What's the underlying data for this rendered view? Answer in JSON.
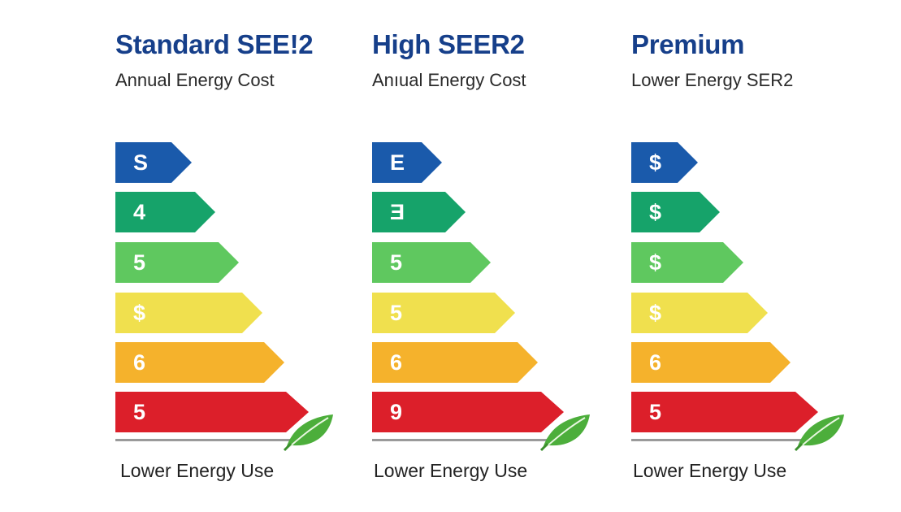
{
  "colors": {
    "title": "#163f8a",
    "bar_colors": [
      "#1a5aab",
      "#16a36a",
      "#5fc85f",
      "#f0e04e",
      "#f5b22c",
      "#dc1f2a"
    ],
    "leaf": "#4cae3b",
    "baseline": "#9a9a9a"
  },
  "panels": [
    {
      "title": "Standard SEE!2",
      "subtitle": "Annual Energy Cost",
      "bars": [
        "S",
        "4",
        "5",
        "$",
        "6",
        "5"
      ],
      "footer": "Lower Energy Use",
      "icon": "leaf-icon"
    },
    {
      "title": "High SEER2",
      "subtitle": "Anıual Energy Cost",
      "bars": [
        "E",
        "Ǝ",
        "5",
        "5",
        "6",
        "9"
      ],
      "footer": "Lower Energy Use",
      "icon": "leaf-icon"
    },
    {
      "title": "Premium",
      "subtitle": "Lower Energy SER2",
      "bars": [
        "$",
        "$",
        "$",
        "$",
        "6",
        "5"
      ],
      "footer": "Lower Energy Use",
      "icon": "leaf-icon"
    }
  ]
}
